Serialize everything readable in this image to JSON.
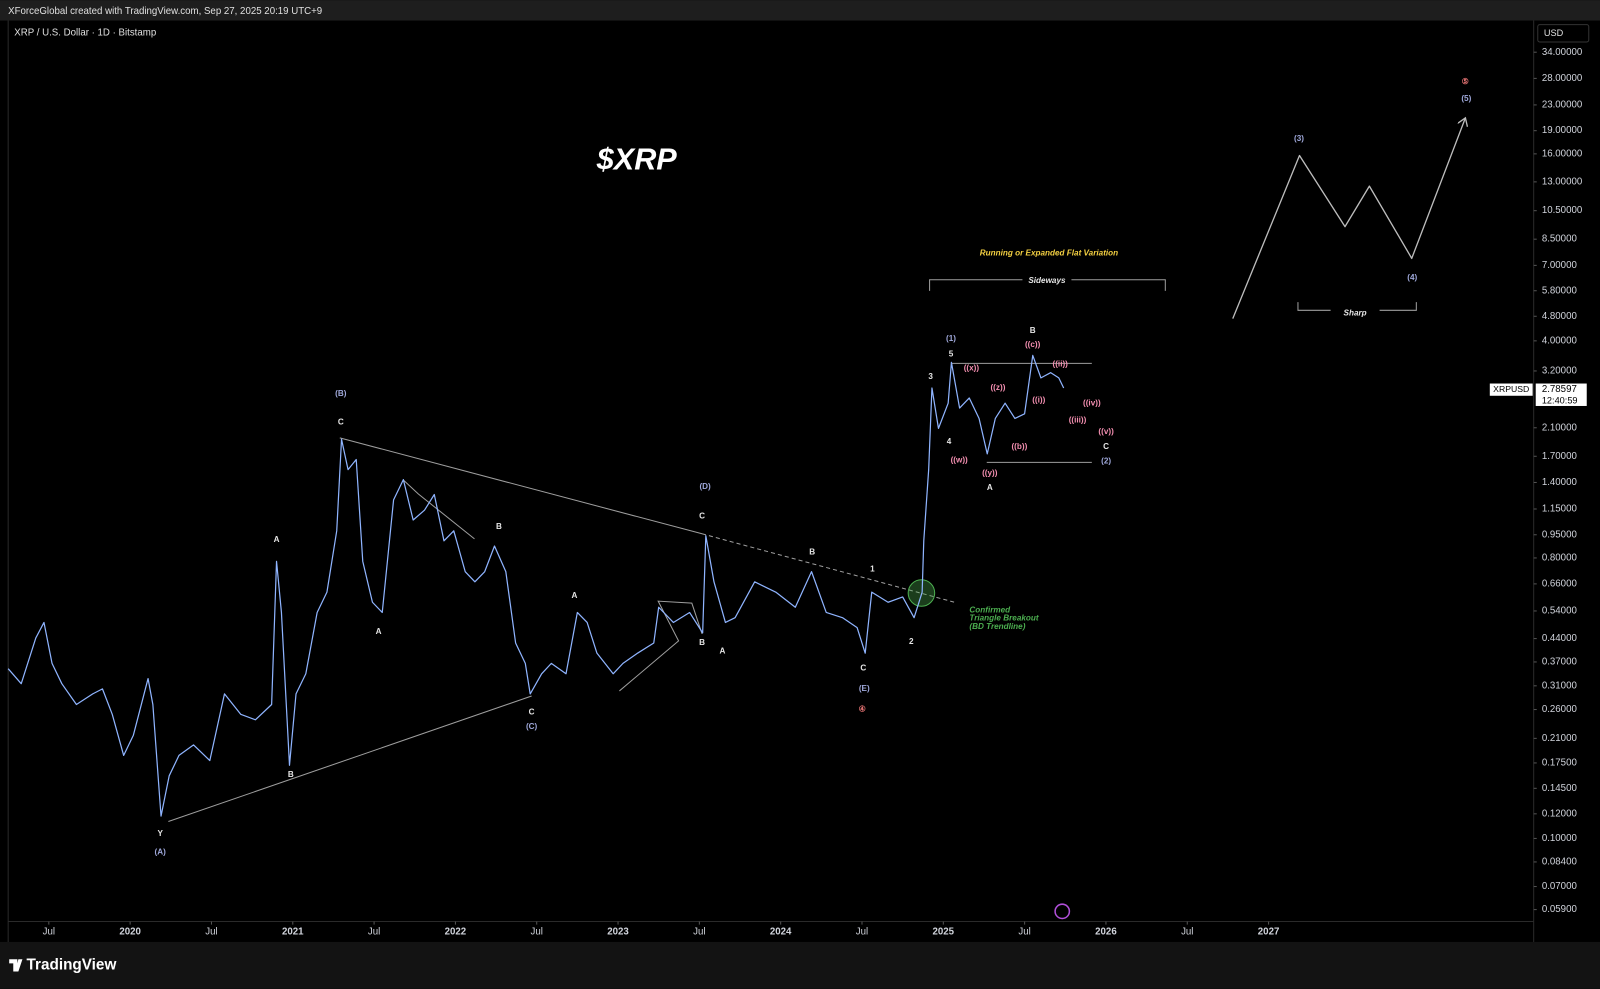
{
  "chart_data": {
    "type": "line",
    "header": "XForceGlobal created with TradingView.com, Sep 27, 2025 20:19 UTC+9",
    "symbol": "XRP / U.S. Dollar · 1D · Bitstamp",
    "title": "$XRP",
    "currency": "USD",
    "ticker": "XRPUSD",
    "last_price": 2.78597,
    "time_left": "12:40:59",
    "brand": "TradingView",
    "log_scale": true,
    "grid": false,
    "xlim": [
      2019.25,
      2028.63
    ],
    "ylim": [
      0.054,
      43
    ],
    "xticks": [
      {
        "value": 2019.5,
        "label": "Jul"
      },
      2020,
      {
        "value": 2020.5,
        "label": "Jul"
      },
      2021,
      {
        "value": 2021.5,
        "label": "Jul"
      },
      2022,
      {
        "value": 2022.5,
        "label": "Jul"
      },
      2023,
      {
        "value": 2023.5,
        "label": "Jul"
      },
      2024,
      {
        "value": 2024.5,
        "label": "Jul"
      },
      2025,
      {
        "value": 2025.5,
        "label": "Jul"
      },
      2026,
      {
        "value": 2026.5,
        "label": "Jul"
      },
      2027
    ],
    "yticks": [
      {
        "value": 34,
        "label": "34.00000"
      },
      {
        "value": 28,
        "label": "28.00000"
      },
      {
        "value": 23,
        "label": "23.00000"
      },
      {
        "value": 19,
        "label": "19.00000"
      },
      {
        "value": 16,
        "label": "16.00000"
      },
      {
        "value": 13,
        "label": "13.00000"
      },
      {
        "value": 10.5,
        "label": "10.50000"
      },
      {
        "value": 8.5,
        "label": "8.50000"
      },
      {
        "value": 7,
        "label": "7.00000"
      },
      {
        "value": 5.8,
        "label": "5.80000"
      },
      {
        "value": 4.8,
        "label": "4.80000"
      },
      {
        "value": 4,
        "label": "4.00000"
      },
      {
        "value": 3.2,
        "label": "3.20000"
      },
      {
        "value": 2.1,
        "label": "2.10000"
      },
      {
        "value": 1.7,
        "label": "1.70000"
      },
      {
        "value": 1.4,
        "label": "1.40000"
      },
      {
        "value": 1.15,
        "label": "1.15000"
      },
      {
        "value": 0.95,
        "label": "0.95000"
      },
      {
        "value": 0.8,
        "label": "0.80000"
      },
      {
        "value": 0.66,
        "label": "0.66000"
      },
      {
        "value": 0.54,
        "label": "0.54000"
      },
      {
        "value": 0.44,
        "label": "0.44000"
      },
      {
        "value": 0.37,
        "label": "0.37000"
      },
      {
        "value": 0.31,
        "label": "0.31000"
      },
      {
        "value": 0.26,
        "label": "0.26000"
      },
      {
        "value": 0.21,
        "label": "0.21000"
      },
      {
        "value": 0.175,
        "label": "0.17500"
      },
      {
        "value": 0.145,
        "label": "0.14500"
      },
      {
        "value": 0.12,
        "label": "0.12000"
      },
      {
        "value": 0.1,
        "label": "0.10000"
      },
      {
        "value": 0.084,
        "label": "0.08400"
      },
      {
        "value": 0.07,
        "label": "0.07000"
      },
      {
        "value": 0.059,
        "label": "0.05900"
      }
    ],
    "series": [
      {
        "color": "#8fb4ff",
        "x": [
          2019.25,
          2019.33,
          2019.42,
          2019.47,
          2019.52,
          2019.58,
          2019.67,
          2019.77,
          2019.83,
          2019.89,
          2019.96,
          2020.02,
          2020.11,
          2020.14,
          2020.19,
          2020.24,
          2020.3,
          2020.39,
          2020.49,
          2020.58,
          2020.68,
          2020.77,
          2020.87,
          2020.9,
          2020.93,
          2020.98,
          2021.02,
          2021.08,
          2021.15,
          2021.21,
          2021.27,
          2021.3,
          2021.34,
          2021.39,
          2021.43,
          2021.49,
          2021.55,
          2021.62,
          2021.68,
          2021.74,
          2021.81,
          2021.87,
          2021.93,
          2021.99,
          2022.06,
          2022.12,
          2022.18,
          2022.24,
          2022.31,
          2022.37,
          2022.43,
          2022.46,
          2022.53,
          2022.59,
          2022.68,
          2022.75,
          2022.81,
          2022.87,
          2022.97,
          2023.03,
          2023.12,
          2023.22,
          2023.25,
          2023.34,
          2023.44,
          2023.52,
          2023.54,
          2023.59,
          2023.66,
          2023.72,
          2023.84,
          2023.97,
          2024.09,
          2024.19,
          2024.28,
          2024.38,
          2024.47,
          2024.52,
          2024.56,
          2024.66,
          2024.75,
          2024.82,
          2024.87,
          2024.88,
          2024.91,
          2024.93,
          2024.97,
          2025.03,
          2025.05,
          2025.1,
          2025.16,
          2025.22,
          2025.27,
          2025.32,
          2025.38,
          2025.44,
          2025.5,
          2025.55,
          2025.6,
          2025.66,
          2025.71,
          2025.74
        ],
        "values": [
          0.352,
          0.315,
          0.442,
          0.496,
          0.366,
          0.315,
          0.27,
          0.292,
          0.303,
          0.251,
          0.185,
          0.215,
          0.327,
          0.27,
          0.118,
          0.159,
          0.185,
          0.2,
          0.178,
          0.292,
          0.251,
          0.241,
          0.27,
          0.78,
          0.534,
          0.172,
          0.292,
          0.339,
          0.534,
          0.621,
          0.978,
          1.93,
          1.54,
          1.66,
          0.78,
          0.576,
          0.534,
          1.23,
          1.43,
          1.06,
          1.14,
          1.28,
          0.908,
          0.978,
          0.723,
          0.67,
          0.723,
          0.874,
          0.723,
          0.426,
          0.366,
          0.292,
          0.339,
          0.366,
          0.339,
          0.534,
          0.496,
          0.395,
          0.339,
          0.366,
          0.395,
          0.426,
          0.555,
          0.496,
          0.534,
          0.459,
          0.943,
          0.67,
          0.496,
          0.514,
          0.67,
          0.621,
          0.555,
          0.723,
          0.534,
          0.514,
          0.477,
          0.395,
          0.621,
          0.576,
          0.599,
          0.514,
          0.621,
          0.908,
          1.54,
          2.82,
          2.09,
          2.52,
          3.41,
          2.43,
          2.62,
          2.25,
          1.73,
          2.25,
          2.52,
          2.25,
          2.33,
          3.59,
          3.04,
          3.16,
          3.04,
          2.82
        ]
      },
      {
        "color": "#bdbdbd",
        "x": [
          2026.78,
          2027.19,
          2027.47,
          2027.62,
          2027.88,
          2028.21
        ],
        "values": [
          4.72,
          15.8,
          9.33,
          12.6,
          7.37,
          20.9
        ]
      }
    ],
    "annotations": [
      "Y",
      "(A)",
      "B",
      "A",
      "(B)",
      "C",
      "A",
      "B",
      "C",
      "(C)",
      "A",
      "(D)",
      "C",
      "B",
      "A",
      "B",
      "1",
      "2",
      "C",
      "(E)",
      "④",
      "3",
      "(1)",
      "5",
      "4",
      "((w))",
      "((x))",
      "((z))",
      "((y))",
      "A",
      "((b))",
      "B",
      "((c))",
      "((ii))",
      "((i))",
      "((iii))",
      "((iv))",
      "((v))",
      "C",
      "(2)",
      "Running or Expanded Flat Variation",
      "Sideways",
      "(3)",
      "(4)",
      "(5)",
      "⑤",
      "Sharp",
      "Confirmed",
      "Triangle Breakout",
      "(BD Trendline)"
    ]
  }
}
